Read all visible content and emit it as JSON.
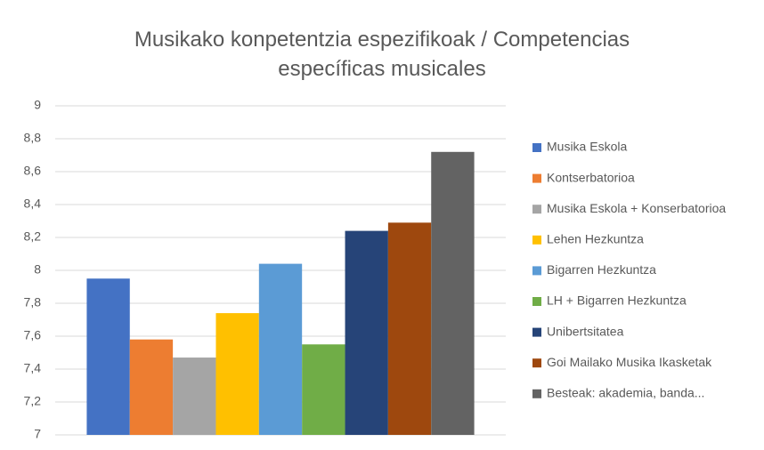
{
  "chart_data": {
    "type": "bar",
    "title": "Musikako konpetentzia espezifikoak / Competencias específicas musicales",
    "categories": [
      null
    ],
    "series": [
      {
        "name": "Musika Eskola",
        "color": "#4472c4",
        "values": [
          7.95
        ]
      },
      {
        "name": "Kontserbatorioa",
        "color": "#ed7d31",
        "values": [
          7.58
        ]
      },
      {
        "name": "Musika Eskola + Konserbatorioa",
        "color": "#a5a5a5",
        "values": [
          7.47
        ]
      },
      {
        "name": "Lehen Hezkuntza",
        "color": "#ffc000",
        "values": [
          7.74
        ]
      },
      {
        "name": "Bigarren Hezkuntza",
        "color": "#5b9bd5",
        "values": [
          8.04
        ]
      },
      {
        "name": "LH + Bigarren Hezkuntza",
        "color": "#70ad47",
        "values": [
          7.55
        ]
      },
      {
        "name": "Unibertsitatea",
        "color": "#264478",
        "values": [
          8.24
        ]
      },
      {
        "name": "Goi Mailako Musika Ikasketak",
        "color": "#9e480e",
        "values": [
          8.29
        ]
      },
      {
        "name": "Besteak: akademia, banda...",
        "color": "#636363",
        "values": [
          8.72
        ]
      }
    ],
    "ylim": [
      7,
      9
    ],
    "yticks": [
      7,
      {
        "value": 7.2,
        "label": "7,2"
      },
      {
        "value": 7.4,
        "label": "7,4"
      },
      {
        "value": 7.6,
        "label": "7,6"
      },
      {
        "value": 7.8,
        "label": "7,8"
      },
      8,
      {
        "value": 8.2,
        "label": "8,2"
      },
      {
        "value": 8.4,
        "label": "8,4"
      },
      {
        "value": 8.6,
        "label": "8,6"
      },
      {
        "value": 8.8,
        "label": "8,8"
      },
      9
    ],
    "grid": true,
    "legend": "right"
  }
}
